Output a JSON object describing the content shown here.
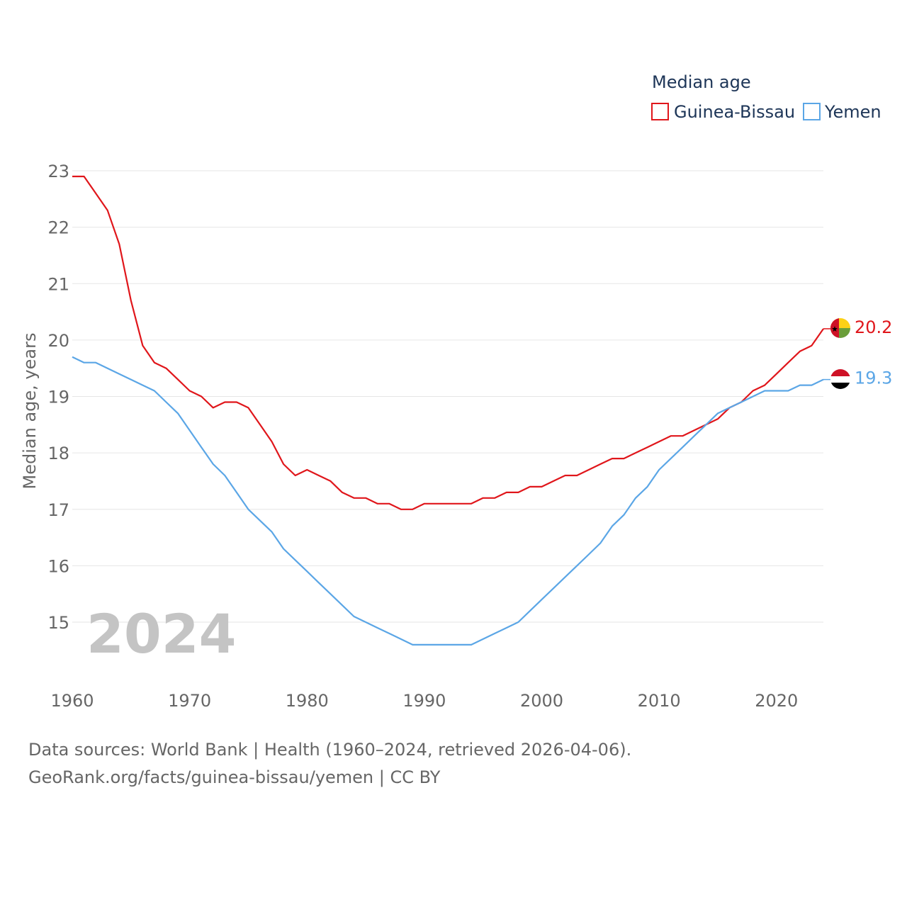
{
  "chart_data": {
    "type": "line",
    "title": "Median age",
    "ylabel": "Median age, years",
    "xlabel": "",
    "year_label": "2024",
    "xlim": [
      1960,
      2024
    ],
    "ylim": [
      14,
      23
    ],
    "x_ticks": [
      1960,
      1970,
      1980,
      1990,
      2000,
      2010,
      2020
    ],
    "y_ticks": [
      15,
      16,
      17,
      18,
      19,
      20,
      21,
      22,
      23
    ],
    "x": [
      1960,
      1961,
      1962,
      1963,
      1964,
      1965,
      1966,
      1967,
      1968,
      1969,
      1970,
      1971,
      1972,
      1973,
      1974,
      1975,
      1976,
      1977,
      1978,
      1979,
      1980,
      1981,
      1982,
      1983,
      1984,
      1985,
      1986,
      1987,
      1988,
      1989,
      1990,
      1991,
      1992,
      1993,
      1994,
      1995,
      1996,
      1997,
      1998,
      1999,
      2000,
      2001,
      2002,
      2003,
      2004,
      2005,
      2006,
      2007,
      2008,
      2009,
      2010,
      2011,
      2012,
      2013,
      2014,
      2015,
      2016,
      2017,
      2018,
      2019,
      2020,
      2021,
      2022,
      2023,
      2024
    ],
    "series": [
      {
        "name": "Guinea-Bissau",
        "color": "#e0161b",
        "end_label": "20.2",
        "flag": "guinea-bissau-flag-icon",
        "values": [
          22.9,
          22.9,
          22.6,
          22.3,
          21.7,
          20.7,
          19.9,
          19.6,
          19.5,
          19.3,
          19.1,
          19.0,
          18.8,
          18.9,
          18.9,
          18.8,
          18.5,
          18.2,
          17.8,
          17.6,
          17.7,
          17.6,
          17.5,
          17.3,
          17.2,
          17.2,
          17.1,
          17.1,
          17.0,
          17.0,
          17.1,
          17.1,
          17.1,
          17.1,
          17.1,
          17.2,
          17.2,
          17.3,
          17.3,
          17.4,
          17.4,
          17.5,
          17.6,
          17.6,
          17.7,
          17.8,
          17.9,
          17.9,
          18.0,
          18.1,
          18.2,
          18.3,
          18.3,
          18.4,
          18.5,
          18.6,
          18.8,
          18.9,
          19.1,
          19.2,
          19.4,
          19.6,
          19.8,
          19.9,
          20.2
        ]
      },
      {
        "name": "Yemen",
        "color": "#5ba6e6",
        "end_label": "19.3",
        "flag": "yemen-flag-icon",
        "values": [
          19.7,
          19.6,
          19.6,
          19.5,
          19.4,
          19.3,
          19.2,
          19.1,
          18.9,
          18.7,
          18.4,
          18.1,
          17.8,
          17.6,
          17.3,
          17.0,
          16.8,
          16.6,
          16.3,
          16.1,
          15.9,
          15.7,
          15.5,
          15.3,
          15.1,
          15.0,
          14.9,
          14.8,
          14.7,
          14.6,
          14.6,
          14.6,
          14.6,
          14.6,
          14.6,
          14.7,
          14.8,
          14.9,
          15.0,
          15.2,
          15.4,
          15.6,
          15.8,
          16.0,
          16.2,
          16.4,
          16.7,
          16.9,
          17.2,
          17.4,
          17.7,
          17.9,
          18.1,
          18.3,
          18.5,
          18.7,
          18.8,
          18.9,
          19.0,
          19.1,
          19.1,
          19.1,
          19.2,
          19.2,
          19.3
        ]
      }
    ]
  },
  "footer": {
    "sources": "Data sources: World Bank | Health (1960–2024, retrieved 2026-04-06).",
    "license": "GeoRank.org/facts/guinea-bissau/yemen | CC BY"
  },
  "colors": {
    "grid": "#e6e6e6",
    "axis_text": "#666666",
    "legend_text": "#1d3557",
    "year_watermark": "#c4c4c4"
  }
}
